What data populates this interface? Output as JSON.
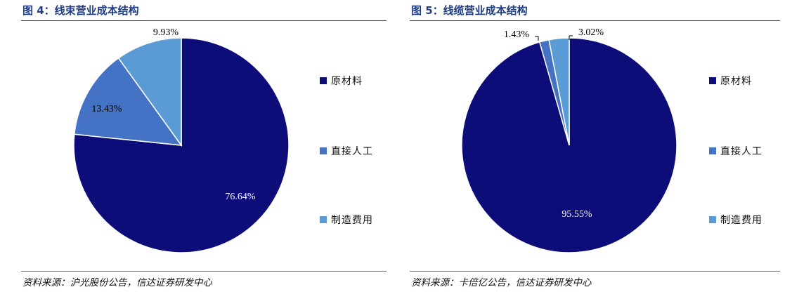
{
  "charts": [
    {
      "title": "图 4：线束营业成本结构",
      "source": "资料来源：沪光股份公告，信达证券研发中心"
    },
    {
      "title": "图 5：线缆营业成本结构",
      "source": "资料来源：卡倍亿公告，信达证券研发中心"
    }
  ],
  "colors": {
    "title": "#1f3e84",
    "raw_material": "#0d0d7a",
    "direct_labor": "#4472c4",
    "manufacturing": "#5b9bd5"
  },
  "chart_data": [
    {
      "type": "pie",
      "title": "图 4：线束营业成本结构",
      "categories": [
        "原材料",
        "直接人工",
        "制造费用"
      ],
      "values": [
        76.64,
        13.43,
        9.93
      ],
      "labels": [
        "76.64%",
        "13.43%",
        "9.93%"
      ],
      "colors": [
        "#0d0d7a",
        "#4472c4",
        "#5b9bd5"
      ],
      "legend": "right"
    },
    {
      "type": "pie",
      "title": "图 5：线缆营业成本结构",
      "categories": [
        "原材料",
        "直接人工",
        "制造费用"
      ],
      "values": [
        95.55,
        1.43,
        3.02
      ],
      "labels": [
        "95.55%",
        "1.43%",
        "3.02%"
      ],
      "colors": [
        "#0d0d7a",
        "#4472c4",
        "#5b9bd5"
      ],
      "legend": "right"
    }
  ]
}
